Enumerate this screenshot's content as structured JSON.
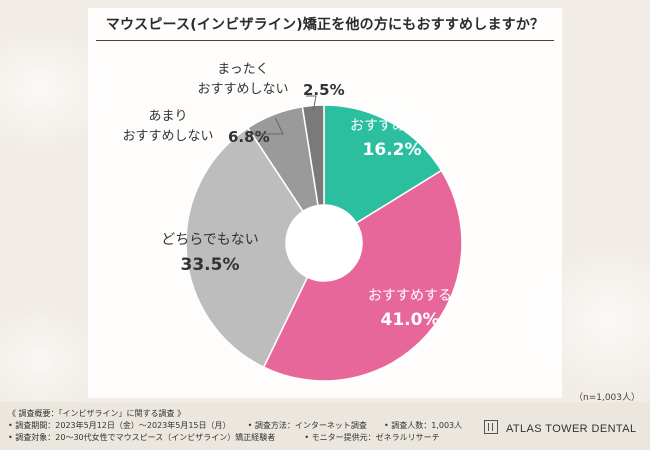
{
  "title": "マウスピース(インビザライン)矯正を他の方にもおすすめしますか？",
  "sample_note": "（n=1,003人）",
  "footer": {
    "line1": "《 調査概要：「インビザライン」に関する調査 》",
    "line2_a": "• 調査期間：2023年5月12日（金）～2023年5月15日（月）",
    "line2_b": "• 調査方法：インターネット調査",
    "line2_c": "• 調査人数：1,003人",
    "line3_a": "• 調査対象：20～30代女性でマウスピース（インビザライン）矯正経験者",
    "line3_b": "• モニター提供元：ゼネラルリサーチ",
    "brand": "ATLAS TOWER DENTAL"
  },
  "colors": {
    "slice_1": "#2bbfa0",
    "slice_2": "#e8679a",
    "slice_3": "#bdbdbd",
    "slice_4": "#9a9a9a",
    "slice_5": "#7a7a7a"
  },
  "chart_data": {
    "type": "pie",
    "style": "donut",
    "categories": [
      "とても\nおすすめする",
      "おすすめする",
      "どちらでもない",
      "あまり\nおすすめしない",
      "まったく\nおすすめしない"
    ],
    "values": [
      16.2,
      41.0,
      33.5,
      6.8,
      2.5
    ],
    "value_labels": [
      "16.2%",
      "41.0%",
      "33.5%",
      "6.8%",
      "2.5%"
    ],
    "unit": "%",
    "start": "12 o'clock",
    "direction": "clockwise",
    "n": 1003
  }
}
